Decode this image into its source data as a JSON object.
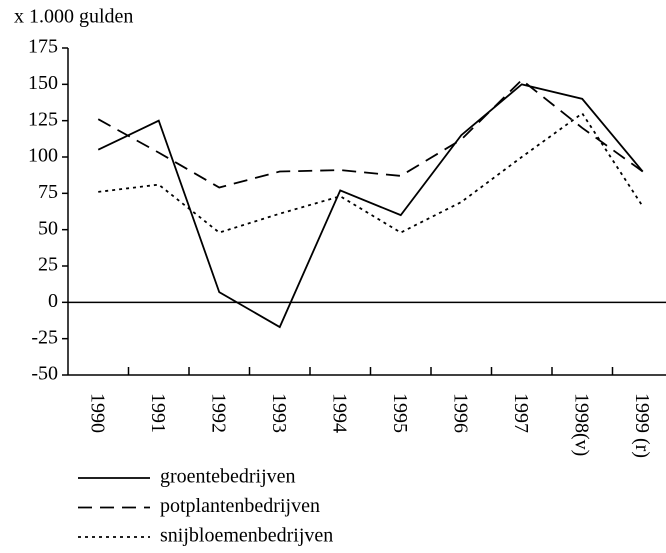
{
  "chart_data": {
    "type": "line",
    "y_axis_label": "x 1.000 gulden",
    "categories": [
      "1990",
      "1991",
      "1992",
      "1993",
      "1994",
      "1995",
      "1996",
      "1997",
      "1998(v)",
      "1999 (r)"
    ],
    "series": [
      {
        "name": "groentebedrijven",
        "color": "#000000",
        "dash": "none",
        "values": [
          105,
          125,
          7,
          -17,
          77,
          60,
          115,
          150,
          140,
          90
        ]
      },
      {
        "name": "potplantenbedrijven",
        "color": "#000000",
        "dash": "14,8",
        "values": [
          126,
          103,
          79,
          90,
          91,
          87,
          112,
          153,
          120,
          90
        ]
      },
      {
        "name": "snijbloemenbedrijven",
        "color": "#000000",
        "dash": "3,4",
        "values": [
          76,
          81,
          48,
          61,
          73,
          48,
          69,
          100,
          130,
          66
        ]
      }
    ],
    "ylim": [
      -50,
      175
    ],
    "yticks": [
      -50,
      -25,
      0,
      25,
      50,
      75,
      100,
      125,
      150,
      175
    ],
    "legend": "bottom"
  }
}
